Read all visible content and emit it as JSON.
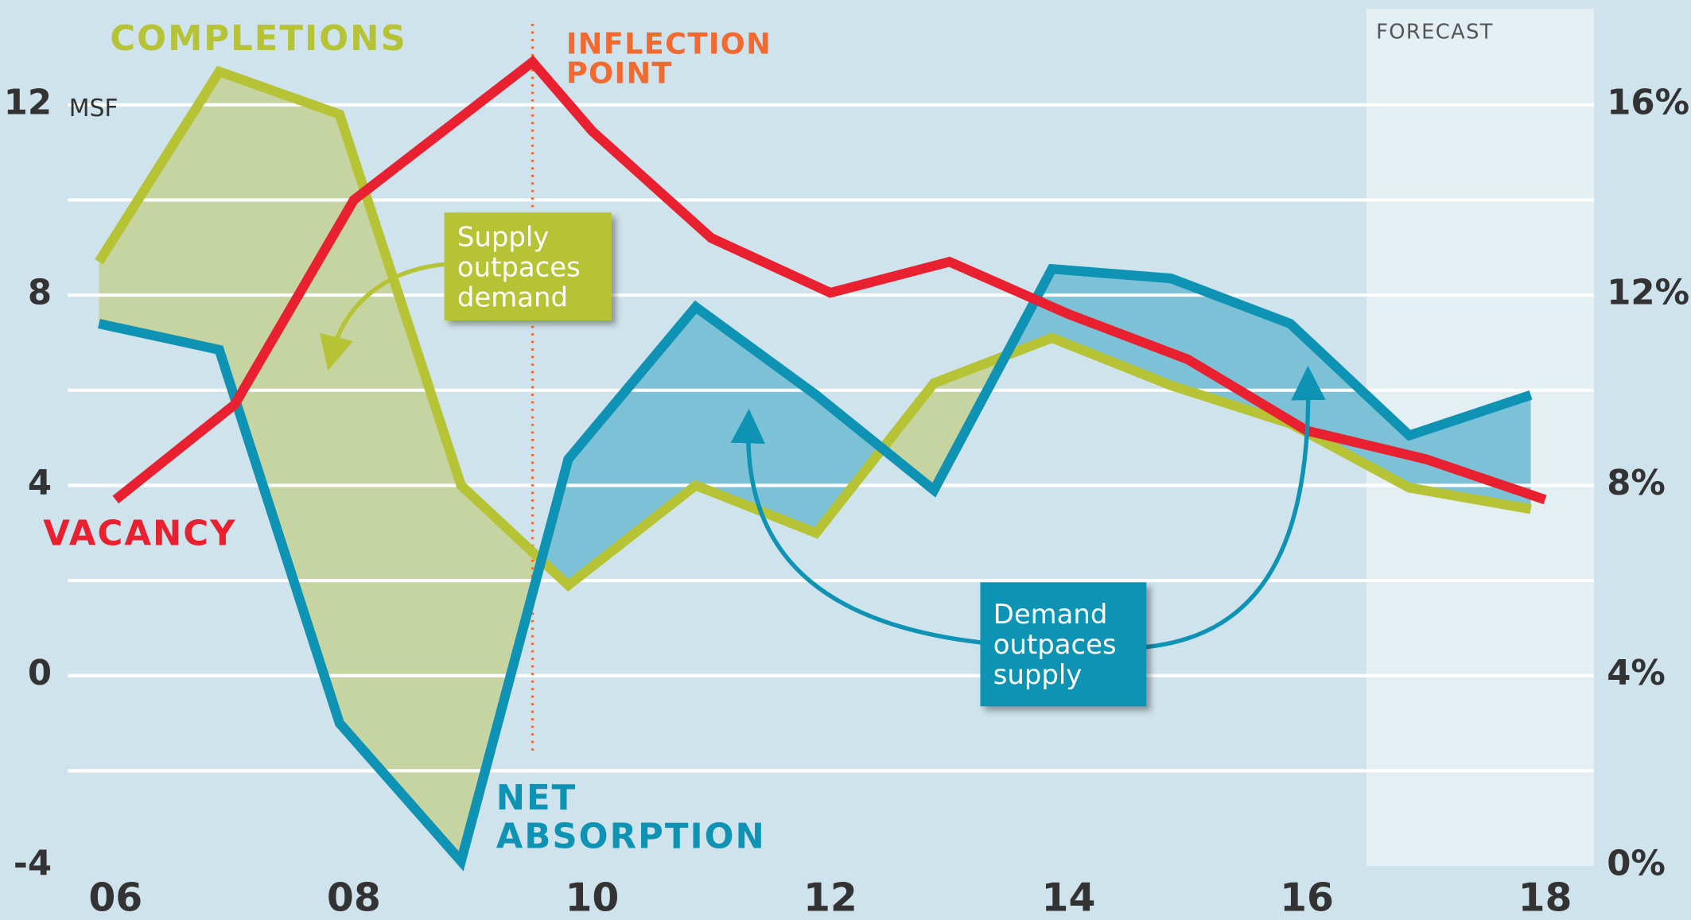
{
  "chart_data": {
    "type": "line",
    "xlim": [
      2005.6,
      2018.41
    ],
    "xticks": [
      {
        "value": 2006,
        "label": "06"
      },
      {
        "value": 2008,
        "label": "08"
      },
      {
        "value": 2010,
        "label": "10"
      },
      {
        "value": 2012,
        "label": "12"
      },
      {
        "value": 2014,
        "label": "14"
      },
      {
        "value": 2016,
        "label": "16"
      },
      {
        "value": 2018,
        "label": "18"
      }
    ],
    "ylim": [
      -4,
      14.2
    ],
    "yticks": [
      -4,
      0,
      4,
      8,
      12
    ],
    "ygrid": [
      -2,
      2,
      6,
      10
    ],
    "y_unit": "MSF",
    "y2lim": [
      0,
      18.2
    ],
    "y2ticks": [
      {
        "value": 0,
        "label": "0%"
      },
      {
        "value": 4,
        "label": "4%"
      },
      {
        "value": 8,
        "label": "8%"
      },
      {
        "value": 12,
        "label": "12%"
      },
      {
        "value": 16,
        "label": "16%"
      }
    ],
    "forecast": {
      "start": 2016.5,
      "label": "FORECAST"
    },
    "inflection": {
      "x": 2009.5,
      "label": [
        "INFLECTION",
        "POINT"
      ]
    },
    "series": [
      {
        "name": "COMPLETIONS",
        "color": "#b5c334",
        "fill": "#c5d4a0",
        "x": [
          2005.86,
          2006.87,
          2007.88,
          2008.9,
          2009.8,
          2010.87,
          2011.88,
          2012.87,
          2013.86,
          2014.86,
          2015.86,
          2016.86,
          2017.88
        ],
        "values": [
          8.7,
          12.7,
          11.8,
          4.0,
          1.9,
          4.0,
          3.0,
          6.15,
          7.1,
          6.1,
          5.3,
          3.95,
          3.5
        ]
      },
      {
        "name": [
          "NET",
          "ABSORPTION"
        ],
        "color": "#0f93b5",
        "fill": "#7dc1d6",
        "x": [
          2005.86,
          2006.87,
          2007.88,
          2008.9,
          2009.8,
          2010.87,
          2011.88,
          2012.87,
          2013.86,
          2014.86,
          2015.86,
          2016.86,
          2017.88
        ],
        "values": [
          7.4,
          6.85,
          -1.0,
          -3.9,
          4.55,
          7.75,
          5.9,
          3.9,
          8.55,
          8.35,
          7.4,
          5.05,
          5.9
        ]
      },
      {
        "name": "VACANCY",
        "color": "#e8202f",
        "axis": "y2",
        "x": [
          2006,
          2007,
          2008,
          2009.5,
          2010,
          2011,
          2012,
          2013,
          2014,
          2015,
          2016,
          2017,
          2018
        ],
        "values": [
          7.7,
          9.7,
          14.0,
          16.9,
          15.45,
          13.2,
          12.05,
          12.7,
          11.6,
          10.65,
          9.15,
          8.55,
          7.7
        ]
      }
    ],
    "callouts": [
      {
        "lines": [
          "Supply",
          "outpaces",
          "demand"
        ]
      },
      {
        "lines": [
          "Demand",
          "outpaces",
          "supply"
        ]
      }
    ]
  }
}
